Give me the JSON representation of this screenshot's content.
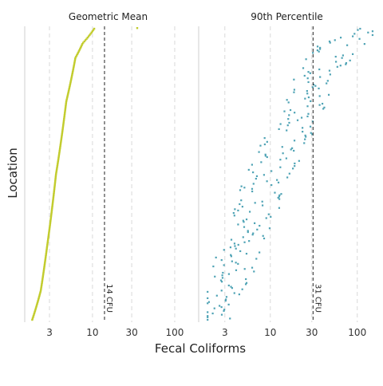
{
  "chart_data": {
    "type": "scatter",
    "xlabel": "Fecal Coliforms",
    "ylabel": "Location",
    "x_scale": "log",
    "tick_labels": [
      "3",
      "10",
      "30",
      "100"
    ],
    "tick_values": [
      3,
      10,
      30,
      100
    ],
    "grid": "vertical dashed at x ticks",
    "panels": [
      {
        "title": "Geometric Mean",
        "color": "#c2cc2e",
        "xlim": [
          1.5,
          160
        ],
        "reference": {
          "value": 14,
          "label": "14 CFU"
        },
        "n_locations": 230,
        "values_ranked_low_to_high": {
          "min": 1.85,
          "p5": 2.1,
          "p10": 2.35,
          "p25": 2.8,
          "median": 3.6,
          "p75": 4.8,
          "p90": 6.2,
          "p95": 7.6,
          "max_typical": 10.5,
          "outlier": 35
        }
      },
      {
        "title": "90th Percentile",
        "color": "#4fa3b5",
        "xlim": [
          1.5,
          160
        ],
        "reference": {
          "value": 31,
          "label": "31 CFU"
        },
        "values_sample_by_rank": [
          [
            0.0,
            2.0
          ],
          [
            0.05,
            2.2
          ],
          [
            0.1,
            2.7
          ],
          [
            0.15,
            3.6
          ],
          [
            0.2,
            4.0
          ],
          [
            0.25,
            4.6
          ],
          [
            0.3,
            5.4
          ],
          [
            0.35,
            6.2
          ],
          [
            0.4,
            7.0
          ],
          [
            0.45,
            8.5
          ],
          [
            0.5,
            10
          ],
          [
            0.55,
            12
          ],
          [
            0.6,
            14
          ],
          [
            0.65,
            17
          ],
          [
            0.7,
            20
          ],
          [
            0.75,
            24
          ],
          [
            0.8,
            30
          ],
          [
            0.85,
            38
          ],
          [
            0.9,
            48
          ],
          [
            0.95,
            70
          ],
          [
            1.0,
            120
          ]
        ]
      }
    ]
  }
}
